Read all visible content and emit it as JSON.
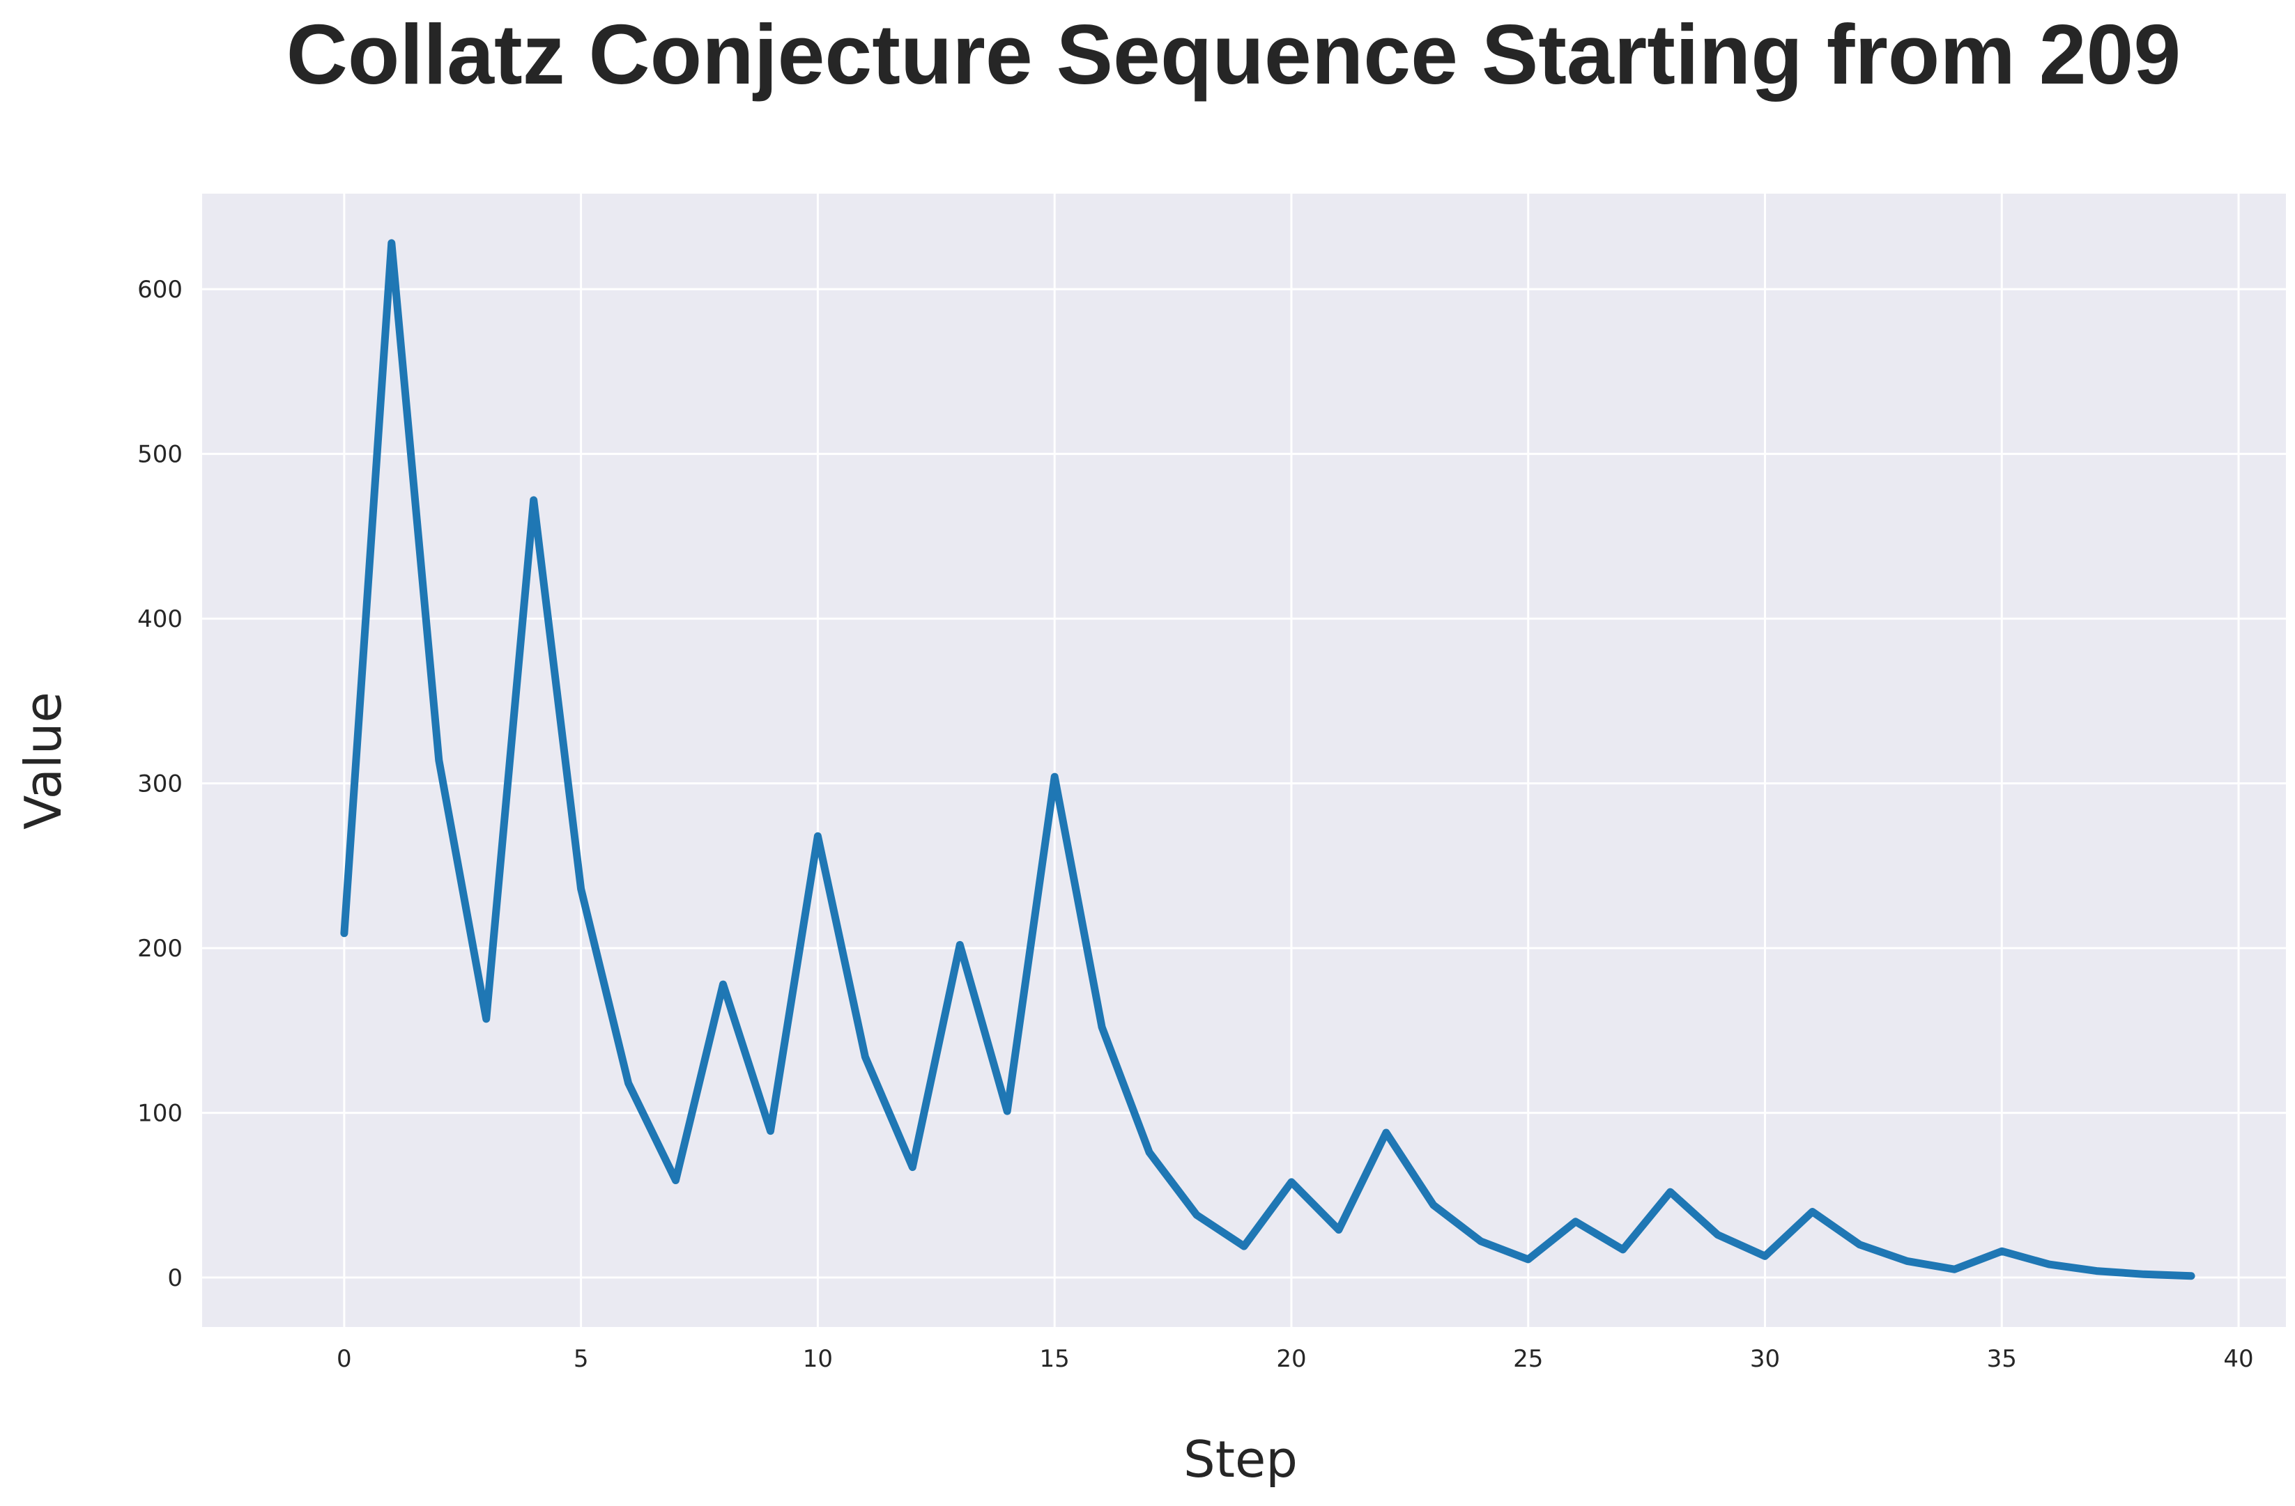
{
  "chart_data": {
    "type": "line",
    "title": "Collatz Conjecture Sequence Starting from 209",
    "xlabel": "Step",
    "ylabel": "Value",
    "xlim": [
      -3,
      41
    ],
    "ylim": [
      -30,
      658
    ],
    "xticks": [
      0,
      5,
      10,
      15,
      20,
      25,
      30,
      35,
      40
    ],
    "yticks": [
      0,
      100,
      200,
      300,
      400,
      500,
      600
    ],
    "grid": true,
    "legend": "none",
    "colors": {
      "line": "#1f77b4",
      "plot_background": "#eaeaf2",
      "grid": "#ffffff"
    },
    "x": [
      0,
      1,
      2,
      3,
      4,
      5,
      6,
      7,
      8,
      9,
      10,
      11,
      12,
      13,
      14,
      15,
      16,
      17,
      18,
      19,
      20,
      21,
      22,
      23,
      24,
      25,
      26,
      27,
      28,
      29,
      30,
      31,
      32,
      33,
      34,
      35,
      36,
      37,
      38,
      39
    ],
    "y": [
      209,
      628,
      314,
      157,
      472,
      236,
      118,
      59,
      178,
      89,
      268,
      134,
      67,
      202,
      101,
      304,
      152,
      76,
      38,
      19,
      58,
      29,
      88,
      44,
      22,
      11,
      34,
      17,
      52,
      26,
      13,
      40,
      20,
      10,
      5,
      16,
      8,
      4,
      2,
      1
    ]
  }
}
